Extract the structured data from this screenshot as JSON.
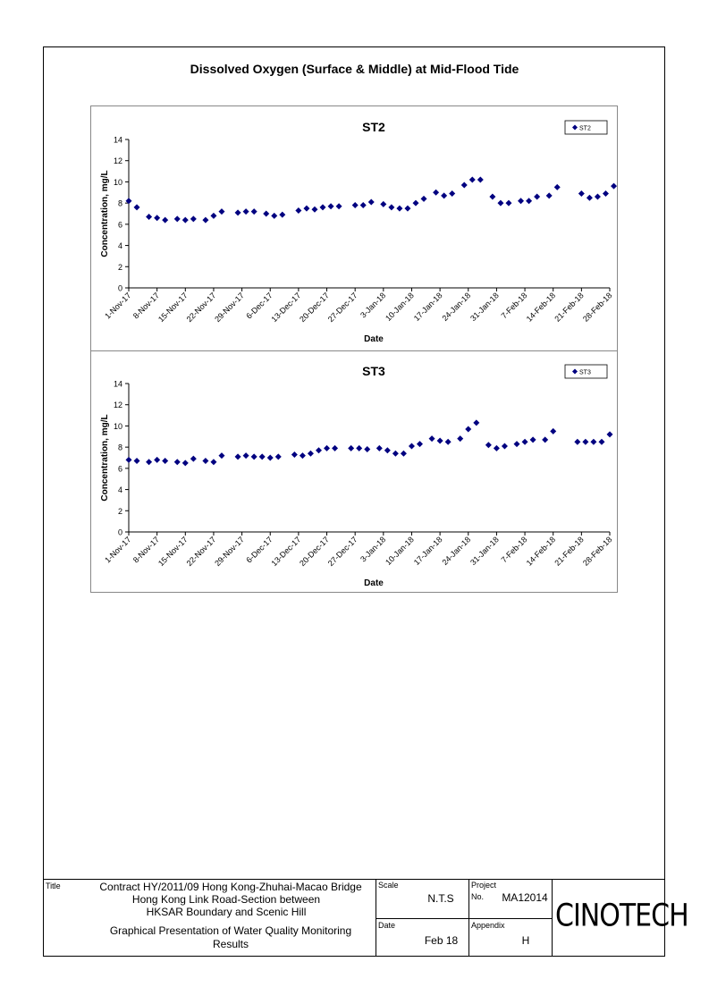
{
  "page_title": "Dissolved Oxygen (Surface & Middle) at Mid-Flood Tide",
  "chart_data": [
    {
      "type": "scatter",
      "title": "ST2",
      "xlabel": "Date",
      "ylabel": "Concentration, mg/L",
      "ylim": [
        0,
        14
      ],
      "yticks": [
        0,
        2,
        4,
        6,
        8,
        10,
        12,
        14
      ],
      "xlim": [
        "2017-11-01",
        "2018-02-28"
      ],
      "xtick_labels": [
        "1-Nov-17",
        "8-Nov-17",
        "15-Nov-17",
        "22-Nov-17",
        "29-Nov-17",
        "6-Dec-17",
        "13-Dec-17",
        "20-Dec-17",
        "27-Dec-17",
        "3-Jan-18",
        "10-Jan-18",
        "17-Jan-18",
        "24-Jan-18",
        "31-Jan-18",
        "7-Feb-18",
        "14-Feb-18",
        "21-Feb-18",
        "28-Feb-18"
      ],
      "legend_position": "top-right",
      "marker_color": "#000080",
      "series": [
        {
          "name": "ST2",
          "points": [
            [
              "2017-11-01",
              8.2
            ],
            [
              "2017-11-03",
              7.6
            ],
            [
              "2017-11-06",
              6.7
            ],
            [
              "2017-11-08",
              6.6
            ],
            [
              "2017-11-10",
              6.4
            ],
            [
              "2017-11-13",
              6.5
            ],
            [
              "2017-11-15",
              6.4
            ],
            [
              "2017-11-17",
              6.5
            ],
            [
              "2017-11-20",
              6.4
            ],
            [
              "2017-11-22",
              6.8
            ],
            [
              "2017-11-24",
              7.2
            ],
            [
              "2017-11-28",
              7.1
            ],
            [
              "2017-11-30",
              7.2
            ],
            [
              "2017-12-02",
              7.2
            ],
            [
              "2017-12-05",
              7.0
            ],
            [
              "2017-12-07",
              6.8
            ],
            [
              "2017-12-09",
              6.9
            ],
            [
              "2017-12-13",
              7.3
            ],
            [
              "2017-12-15",
              7.5
            ],
            [
              "2017-12-17",
              7.4
            ],
            [
              "2017-12-19",
              7.6
            ],
            [
              "2017-12-21",
              7.7
            ],
            [
              "2017-12-23",
              7.7
            ],
            [
              "2017-12-27",
              7.8
            ],
            [
              "2017-12-29",
              7.8
            ],
            [
              "2017-12-31",
              8.1
            ],
            [
              "2018-01-03",
              7.9
            ],
            [
              "2018-01-05",
              7.6
            ],
            [
              "2018-01-07",
              7.5
            ],
            [
              "2018-01-09",
              7.5
            ],
            [
              "2018-01-11",
              8.0
            ],
            [
              "2018-01-13",
              8.4
            ],
            [
              "2018-01-16",
              9.0
            ],
            [
              "2018-01-18",
              8.7
            ],
            [
              "2018-01-20",
              8.9
            ],
            [
              "2018-01-23",
              9.7
            ],
            [
              "2018-01-25",
              10.2
            ],
            [
              "2018-01-27",
              10.2
            ],
            [
              "2018-01-30",
              8.6
            ],
            [
              "2018-02-01",
              8.0
            ],
            [
              "2018-02-03",
              8.0
            ],
            [
              "2018-02-06",
              8.2
            ],
            [
              "2018-02-08",
              8.2
            ],
            [
              "2018-02-10",
              8.6
            ],
            [
              "2018-02-13",
              8.7
            ],
            [
              "2018-02-15",
              9.5
            ],
            [
              "2018-02-21",
              8.9
            ],
            [
              "2018-02-23",
              8.5
            ],
            [
              "2018-02-25",
              8.6
            ],
            [
              "2018-02-27",
              8.9
            ],
            [
              "2018-02-29",
              9.6
            ]
          ]
        }
      ]
    },
    {
      "type": "scatter",
      "title": "ST3",
      "xlabel": "Date",
      "ylabel": "Concentration, mg/L",
      "ylim": [
        0,
        14
      ],
      "yticks": [
        0,
        2,
        4,
        6,
        8,
        10,
        12,
        14
      ],
      "xlim": [
        "2017-11-01",
        "2018-02-28"
      ],
      "xtick_labels": [
        "1-Nov-17",
        "8-Nov-17",
        "15-Nov-17",
        "22-Nov-17",
        "29-Nov-17",
        "6-Dec-17",
        "13-Dec-17",
        "20-Dec-17",
        "27-Dec-17",
        "3-Jan-18",
        "10-Jan-18",
        "17-Jan-18",
        "24-Jan-18",
        "31-Jan-18",
        "7-Feb-18",
        "14-Feb-18",
        "21-Feb-18",
        "28-Feb-18"
      ],
      "legend_position": "top-right",
      "marker_color": "#000080",
      "series": [
        {
          "name": "ST3",
          "points": [
            [
              "2017-11-01",
              6.8
            ],
            [
              "2017-11-03",
              6.7
            ],
            [
              "2017-11-06",
              6.6
            ],
            [
              "2017-11-08",
              6.8
            ],
            [
              "2017-11-10",
              6.7
            ],
            [
              "2017-11-13",
              6.6
            ],
            [
              "2017-11-15",
              6.5
            ],
            [
              "2017-11-17",
              6.9
            ],
            [
              "2017-11-20",
              6.7
            ],
            [
              "2017-11-22",
              6.6
            ],
            [
              "2017-11-24",
              7.2
            ],
            [
              "2017-11-28",
              7.1
            ],
            [
              "2017-11-30",
              7.2
            ],
            [
              "2017-12-02",
              7.1
            ],
            [
              "2017-12-04",
              7.1
            ],
            [
              "2017-12-06",
              7.0
            ],
            [
              "2017-12-08",
              7.1
            ],
            [
              "2017-12-12",
              7.3
            ],
            [
              "2017-12-14",
              7.2
            ],
            [
              "2017-12-16",
              7.4
            ],
            [
              "2017-12-18",
              7.7
            ],
            [
              "2017-12-20",
              7.9
            ],
            [
              "2017-12-22",
              7.9
            ],
            [
              "2017-12-26",
              7.9
            ],
            [
              "2017-12-28",
              7.9
            ],
            [
              "2017-12-30",
              7.8
            ],
            [
              "2018-01-02",
              7.9
            ],
            [
              "2018-01-04",
              7.7
            ],
            [
              "2018-01-06",
              7.4
            ],
            [
              "2018-01-08",
              7.4
            ],
            [
              "2018-01-10",
              8.1
            ],
            [
              "2018-01-12",
              8.3
            ],
            [
              "2018-01-15",
              8.8
            ],
            [
              "2018-01-17",
              8.6
            ],
            [
              "2018-01-19",
              8.5
            ],
            [
              "2018-01-22",
              8.8
            ],
            [
              "2018-01-24",
              9.7
            ],
            [
              "2018-01-26",
              10.3
            ],
            [
              "2018-01-29",
              8.2
            ],
            [
              "2018-01-31",
              7.9
            ],
            [
              "2018-02-02",
              8.1
            ],
            [
              "2018-02-05",
              8.3
            ],
            [
              "2018-02-07",
              8.5
            ],
            [
              "2018-02-09",
              8.7
            ],
            [
              "2018-02-12",
              8.7
            ],
            [
              "2018-02-14",
              9.5
            ],
            [
              "2018-02-20",
              8.5
            ],
            [
              "2018-02-22",
              8.5
            ],
            [
              "2018-02-24",
              8.5
            ],
            [
              "2018-02-26",
              8.5
            ],
            [
              "2018-02-28",
              9.2
            ]
          ]
        }
      ]
    }
  ],
  "title_block": {
    "title_label": "Title",
    "title_line1": "Contract HY/2011/09 Hong Kong-Zhuhai-Macao Bridge",
    "title_line2": "Hong Kong Link Road-Section between",
    "title_line3": "HKSAR Boundary and Scenic Hill",
    "title_line4": "Graphical Presentation of Water Quality Monitoring",
    "title_line5": "Results",
    "scale_label": "Scale",
    "scale_value": "N.T.S",
    "project_label": "Project",
    "project_no_label": "No.",
    "project_value": "MA12014",
    "date_label": "Date",
    "date_value": "Feb 18",
    "appendix_label": "Appendix",
    "appendix_value": "H",
    "logo_text": "CINOTECH"
  }
}
